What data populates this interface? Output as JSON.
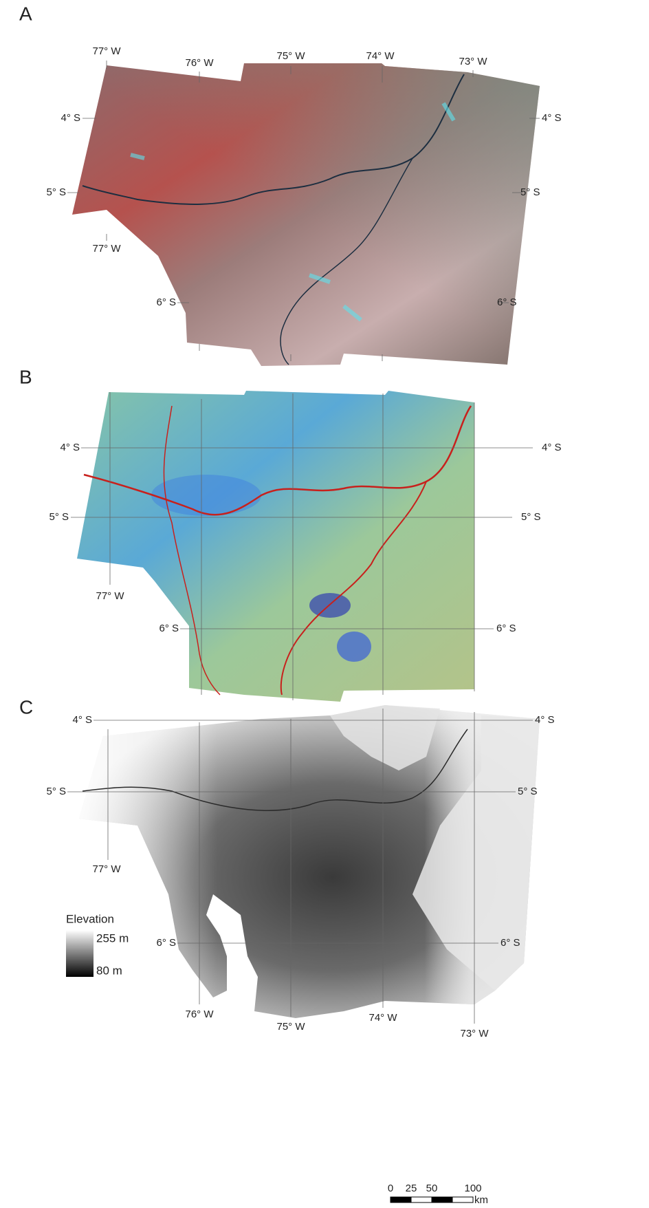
{
  "panels": [
    {
      "label": "A",
      "grid_labels": [
        "77° W",
        "76° W",
        "75° W",
        "74° W",
        "73° W",
        "4° S",
        "4° S",
        "5° S",
        "5° S",
        "77° W",
        "6° S",
        "6° S"
      ]
    },
    {
      "label": "B",
      "grid_labels": [
        "4° S",
        "4° S",
        "5° S",
        "5° S",
        "77° W",
        "6° S",
        "6° S"
      ]
    },
    {
      "label": "C",
      "grid_labels": [
        "4° S",
        "4° S",
        "5° S",
        "5° S",
        "77° W",
        "6° S",
        "6° S",
        "76° W",
        "75° W",
        "74° W",
        "73° W"
      ]
    }
  ],
  "legend": {
    "title": "Elevation",
    "max": "255 m",
    "min": "80 m"
  },
  "scale_bar": {
    "ticks": [
      "0",
      "25",
      "50",
      "100"
    ],
    "unit": "km"
  }
}
